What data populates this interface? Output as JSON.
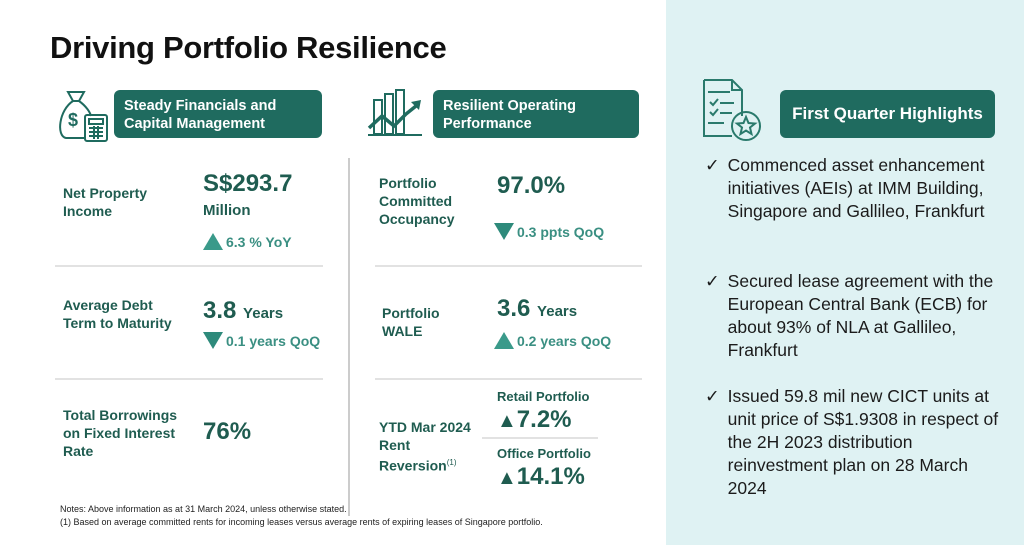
{
  "title": "Driving Portfolio Resilience",
  "left": {
    "heading": "Steady Financials and Capital Management",
    "icon": "money-bag-calculator-icon",
    "items": [
      {
        "label": "Net Property Income",
        "value": "S$293.7",
        "unit": "Million",
        "change": "6.3 % YoY",
        "direction": "up"
      },
      {
        "label": "Average Debt Term to Maturity",
        "value": "3.8",
        "unit": "Years",
        "change": "0.1 years QoQ",
        "direction": "down"
      },
      {
        "label": "Total Borrowings on Fixed Interest Rate",
        "value": "76%"
      }
    ]
  },
  "middle": {
    "heading": "Resilient Operating Performance",
    "icon": "bar-chart-trend-icon",
    "items": [
      {
        "label": "Portfolio Committed Occupancy",
        "value": "97.0%",
        "change": "0.3 ppts QoQ",
        "direction": "down"
      },
      {
        "label": "Portfolio WALE",
        "value": "3.6",
        "unit": "Years",
        "change": "0.2 years QoQ",
        "direction": "up"
      }
    ],
    "reversion": {
      "label": "YTD Mar 2024 Rent Reversion",
      "footnote": "(1)",
      "retail_label": "Retail Portfolio",
      "retail_value": "7.2%",
      "office_label": "Office Portfolio",
      "office_value": "14.1%"
    }
  },
  "right": {
    "heading": "First Quarter Highlights",
    "icon": "checklist-star-icon",
    "check": "✓",
    "bullets": [
      "Commenced asset enhancement initiatives (AEIs) at IMM Building, Singapore and Gallileo, Frankfurt",
      "Secured lease agreement with the European Central Bank (ECB) for about 93% of NLA at Gallileo, Frankfurt",
      "Issued 59.8 mil new CICT units at unit price of S$1.9308 in respect of the 2H 2023 distribution reinvestment plan on 28 March 2024"
    ]
  },
  "notes": [
    "Notes: Above information as at 31 March 2024, unless otherwise stated.",
    "(1)   Based on average committed rents for incoming leases versus average rents of expiring leases of Singapore portfolio."
  ],
  "colors": {
    "accent": "#1f6b5f",
    "text": "#1f5c50",
    "triangle": "#3a9a8a",
    "panel": "#dff2f3"
  }
}
